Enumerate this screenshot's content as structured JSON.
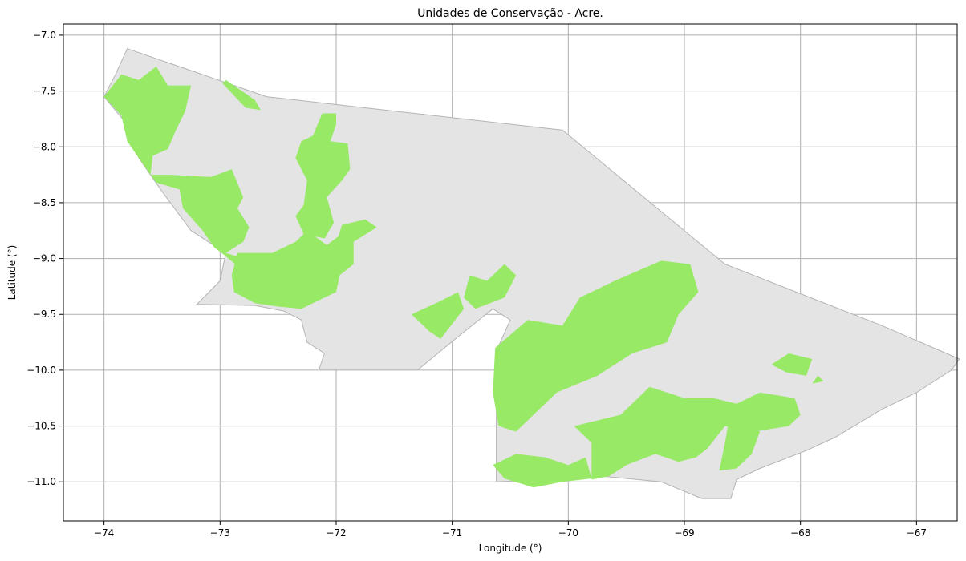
{
  "title": "Unidades de Conservação - Acre.",
  "xlabel": "Longitude (°)",
  "ylabel": "Latitude (°)",
  "xticks": [
    -74,
    -73,
    -72,
    -71,
    -70,
    -69,
    -68,
    -67
  ],
  "yticks": [
    -7.0,
    -7.5,
    -8.0,
    -8.5,
    -9.0,
    -9.5,
    -10.0,
    -10.5,
    -11.0
  ],
  "xtick_labels": [
    "−74",
    "−73",
    "−72",
    "−71",
    "−70",
    "−69",
    "−68",
    "−67"
  ],
  "ytick_labels": [
    "−7.0",
    "−7.5",
    "−8.0",
    "−8.5",
    "−9.0",
    "−9.5",
    "−10.0",
    "−10.5",
    "−11.0"
  ],
  "xlim": [
    -74.35,
    -66.65
  ],
  "ylim": [
    -11.35,
    -6.9
  ],
  "grid": true,
  "colors": {
    "state_fill": "#e4e4e4",
    "state_edge": "#b4b4b4",
    "unit_fill": "#98e965",
    "grid": "#b0b0b0"
  },
  "state_outline": [
    [
      -73.8,
      -7.12
    ],
    [
      -72.6,
      -7.55
    ],
    [
      -70.05,
      -7.85
    ],
    [
      -68.65,
      -9.05
    ],
    [
      -67.3,
      -9.6
    ],
    [
      -66.63,
      -9.9
    ],
    [
      -66.7,
      -10.0
    ],
    [
      -67.0,
      -10.2
    ],
    [
      -67.3,
      -10.35
    ],
    [
      -67.7,
      -10.6
    ],
    [
      -67.95,
      -10.72
    ],
    [
      -68.35,
      -10.88
    ],
    [
      -68.55,
      -10.98
    ],
    [
      -68.6,
      -11.15
    ],
    [
      -68.85,
      -11.15
    ],
    [
      -69.2,
      -11.0
    ],
    [
      -69.7,
      -10.95
    ],
    [
      -70.05,
      -10.97
    ],
    [
      -70.62,
      -11.0
    ],
    [
      -70.62,
      -9.83
    ],
    [
      -70.5,
      -9.55
    ],
    [
      -70.65,
      -9.45
    ],
    [
      -70.95,
      -9.7
    ],
    [
      -71.3,
      -10.0
    ],
    [
      -72.15,
      -10.0
    ],
    [
      -72.1,
      -9.85
    ],
    [
      -72.25,
      -9.75
    ],
    [
      -72.3,
      -9.55
    ],
    [
      -72.45,
      -9.47
    ],
    [
      -72.7,
      -9.42
    ],
    [
      -73.2,
      -9.41
    ],
    [
      -73.0,
      -9.2
    ],
    [
      -72.95,
      -8.95
    ],
    [
      -73.25,
      -8.75
    ],
    [
      -73.5,
      -8.4
    ],
    [
      -73.7,
      -8.1
    ],
    [
      -73.8,
      -7.8
    ],
    [
      -74.0,
      -7.55
    ],
    [
      -73.9,
      -7.35
    ]
  ],
  "conservation_units": [
    [
      [
        -73.85,
        -7.35
      ],
      [
        -73.7,
        -7.4
      ],
      [
        -73.55,
        -7.28
      ],
      [
        -73.45,
        -7.45
      ],
      [
        -73.25,
        -7.45
      ],
      [
        -73.3,
        -7.68
      ],
      [
        -73.38,
        -7.85
      ],
      [
        -73.45,
        -8.02
      ],
      [
        -73.58,
        -8.08
      ],
      [
        -73.6,
        -8.25
      ],
      [
        -73.42,
        -8.25
      ],
      [
        -73.08,
        -8.27
      ],
      [
        -72.9,
        -8.2
      ],
      [
        -72.8,
        -8.45
      ],
      [
        -72.85,
        -8.55
      ],
      [
        -72.75,
        -8.72
      ],
      [
        -72.8,
        -8.85
      ],
      [
        -72.95,
        -8.95
      ],
      [
        -72.8,
        -9.0
      ],
      [
        -72.87,
        -9.05
      ],
      [
        -72.95,
        -8.98
      ],
      [
        -73.05,
        -8.9
      ],
      [
        -73.15,
        -8.75
      ],
      [
        -73.32,
        -8.55
      ],
      [
        -73.35,
        -8.38
      ],
      [
        -73.55,
        -8.32
      ],
      [
        -73.7,
        -8.1
      ],
      [
        -73.8,
        -7.95
      ],
      [
        -73.85,
        -7.72
      ],
      [
        -74.0,
        -7.55
      ]
    ],
    [
      [
        -72.95,
        -7.4
      ],
      [
        -72.7,
        -7.58
      ],
      [
        -72.65,
        -7.67
      ],
      [
        -72.78,
        -7.65
      ],
      [
        -72.98,
        -7.43
      ]
    ],
    [
      [
        -72.12,
        -7.7
      ],
      [
        -72.2,
        -7.9
      ],
      [
        -72.3,
        -7.95
      ],
      [
        -72.35,
        -8.1
      ],
      [
        -72.25,
        -8.3
      ],
      [
        -72.28,
        -8.52
      ],
      [
        -72.35,
        -8.62
      ],
      [
        -72.28,
        -8.78
      ],
      [
        -72.1,
        -8.82
      ],
      [
        -72.02,
        -8.68
      ],
      [
        -72.08,
        -8.45
      ],
      [
        -71.95,
        -8.3
      ],
      [
        -71.88,
        -8.2
      ],
      [
        -71.9,
        -7.97
      ],
      [
        -72.05,
        -7.95
      ],
      [
        -72.0,
        -7.8
      ],
      [
        -72.0,
        -7.7
      ]
    ],
    [
      [
        -72.85,
        -8.95
      ],
      [
        -72.55,
        -8.95
      ],
      [
        -72.35,
        -8.85
      ],
      [
        -72.25,
        -8.75
      ],
      [
        -72.08,
        -8.88
      ],
      [
        -71.98,
        -8.8
      ],
      [
        -71.95,
        -8.7
      ],
      [
        -71.75,
        -8.65
      ],
      [
        -71.65,
        -8.72
      ],
      [
        -71.85,
        -8.85
      ],
      [
        -71.85,
        -9.05
      ],
      [
        -71.97,
        -9.15
      ],
      [
        -72.0,
        -9.3
      ],
      [
        -72.1,
        -9.35
      ],
      [
        -72.3,
        -9.45
      ],
      [
        -72.5,
        -9.43
      ],
      [
        -72.7,
        -9.4
      ],
      [
        -72.88,
        -9.3
      ],
      [
        -72.9,
        -9.15
      ]
    ],
    [
      [
        -71.35,
        -9.5
      ],
      [
        -71.1,
        -9.38
      ],
      [
        -70.95,
        -9.3
      ],
      [
        -70.9,
        -9.45
      ],
      [
        -71.1,
        -9.72
      ],
      [
        -71.2,
        -9.65
      ]
    ],
    [
      [
        -70.8,
        -9.45
      ],
      [
        -70.55,
        -9.35
      ],
      [
        -70.45,
        -9.15
      ],
      [
        -70.55,
        -9.05
      ],
      [
        -70.7,
        -9.2
      ],
      [
        -70.85,
        -9.15
      ],
      [
        -70.9,
        -9.35
      ]
    ],
    [
      [
        -70.63,
        -9.8
      ],
      [
        -70.35,
        -9.55
      ],
      [
        -70.05,
        -9.6
      ],
      [
        -69.9,
        -9.35
      ],
      [
        -69.6,
        -9.2
      ],
      [
        -69.2,
        -9.02
      ],
      [
        -68.95,
        -9.05
      ],
      [
        -68.88,
        -9.3
      ],
      [
        -69.05,
        -9.5
      ],
      [
        -69.15,
        -9.75
      ],
      [
        -69.45,
        -9.85
      ],
      [
        -69.75,
        -10.05
      ],
      [
        -70.1,
        -10.2
      ],
      [
        -70.3,
        -10.4
      ],
      [
        -70.45,
        -10.55
      ],
      [
        -70.6,
        -10.5
      ],
      [
        -70.65,
        -10.2
      ]
    ],
    [
      [
        -69.75,
        -10.45
      ],
      [
        -69.55,
        -10.4
      ],
      [
        -69.3,
        -10.15
      ],
      [
        -69.0,
        -10.25
      ],
      [
        -68.75,
        -10.25
      ],
      [
        -68.55,
        -10.3
      ],
      [
        -68.35,
        -10.2
      ],
      [
        -68.05,
        -10.25
      ],
      [
        -68.0,
        -10.4
      ],
      [
        -68.1,
        -10.5
      ],
      [
        -68.4,
        -10.55
      ],
      [
        -68.65,
        -10.5
      ],
      [
        -68.8,
        -10.7
      ],
      [
        -68.9,
        -10.78
      ],
      [
        -69.05,
        -10.82
      ],
      [
        -69.25,
        -10.75
      ],
      [
        -69.5,
        -10.85
      ],
      [
        -69.65,
        -10.95
      ],
      [
        -69.8,
        -10.98
      ],
      [
        -69.8,
        -10.65
      ],
      [
        -69.95,
        -10.5
      ]
    ],
    [
      [
        -68.6,
        -10.35
      ],
      [
        -68.35,
        -10.55
      ],
      [
        -68.42,
        -10.75
      ],
      [
        -68.55,
        -10.88
      ],
      [
        -68.7,
        -10.9
      ],
      [
        -68.65,
        -10.65
      ]
    ],
    [
      [
        -70.45,
        -10.75
      ],
      [
        -70.2,
        -10.78
      ],
      [
        -70.0,
        -10.85
      ],
      [
        -69.85,
        -10.78
      ],
      [
        -69.8,
        -10.97
      ],
      [
        -70.05,
        -11.0
      ],
      [
        -70.3,
        -11.05
      ],
      [
        -70.55,
        -10.97
      ],
      [
        -70.65,
        -10.85
      ]
    ],
    [
      [
        -68.1,
        -9.85
      ],
      [
        -67.9,
        -9.9
      ],
      [
        -67.95,
        -10.05
      ],
      [
        -68.12,
        -10.02
      ],
      [
        -68.25,
        -9.95
      ]
    ],
    [
      [
        -67.85,
        -10.05
      ],
      [
        -67.8,
        -10.1
      ],
      [
        -67.9,
        -10.12
      ]
    ]
  ]
}
